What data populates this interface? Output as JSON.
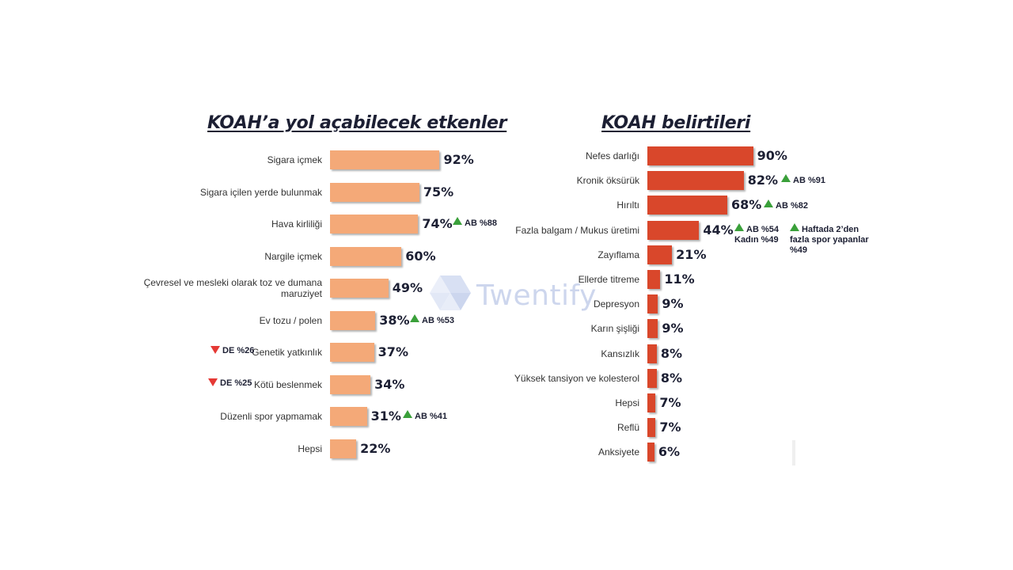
{
  "colors": {
    "left_bar": "#f4a978",
    "right_bar": "#d9472b",
    "title": "#1c1f33",
    "up_arrow": "#3aa03a",
    "down_arrow": "#e53935"
  },
  "watermark": {
    "text": "Twentify",
    "icon": "twentify-logo-icon"
  },
  "chart_data": [
    {
      "type": "bar",
      "orientation": "horizontal",
      "title": "KOAH’a yol açabilecek etkenler",
      "xlim": [
        0,
        100
      ],
      "categories": [
        "Sigara içmek",
        "Sigara içilen yerde bulunmak",
        "Hava kirliliği",
        "Nargile içmek",
        "Çevresel ve mesleki olarak toz ve dumana maruziyet",
        "Ev tozu / polen",
        "Genetik yatkınlık",
        "Kötü beslenmek",
        "Düzenli spor yapmamak",
        "Hepsi"
      ],
      "values": [
        92,
        75,
        74,
        60,
        49,
        38,
        37,
        34,
        31,
        22
      ],
      "value_labels": [
        "92%",
        "75%",
        "74%",
        "60%",
        "49%",
        "38%",
        "37%",
        "34%",
        "31%",
        "22%"
      ],
      "annotations": [
        {
          "index": 2,
          "direction": "up",
          "text": "AB %88"
        },
        {
          "index": 5,
          "direction": "up",
          "text": "AB %53"
        },
        {
          "index": 6,
          "direction": "down",
          "text": "DE %26"
        },
        {
          "index": 7,
          "direction": "down",
          "text": "DE %25"
        },
        {
          "index": 8,
          "direction": "up",
          "text": "AB %41"
        }
      ]
    },
    {
      "type": "bar",
      "orientation": "horizontal",
      "title": "KOAH belirtileri",
      "xlim": [
        0,
        100
      ],
      "categories": [
        "Nefes darlığı",
        "Kronik öksürük",
        "Hırıltı",
        "Fazla balgam / Mukus üretimi",
        "Zayıflama",
        "Ellerde titreme",
        "Depresyon",
        "Karın şişliği",
        "Kansızlık",
        "Yüksek tansiyon ve kolesterol",
        "Hepsi",
        "Reflü",
        "Anksiyete"
      ],
      "values": [
        90,
        82,
        68,
        44,
        21,
        11,
        9,
        9,
        8,
        8,
        7,
        7,
        6
      ],
      "value_labels": [
        "90%",
        "82%",
        "68%",
        "44%",
        "21%",
        "11%",
        "9%",
        "9%",
        "8%",
        "8%",
        "7%",
        "7%",
        "6%"
      ],
      "annotations": [
        {
          "index": 1,
          "direction": "up",
          "text": "AB %91"
        },
        {
          "index": 2,
          "direction": "up",
          "text": "AB %82"
        },
        {
          "index": 3,
          "direction": "up",
          "text": "AB %54",
          "subtext": "Kadın %49"
        },
        {
          "index": 3,
          "direction": "up",
          "text": "Haftada 2’den fazla spor yapanlar %49"
        }
      ]
    }
  ]
}
